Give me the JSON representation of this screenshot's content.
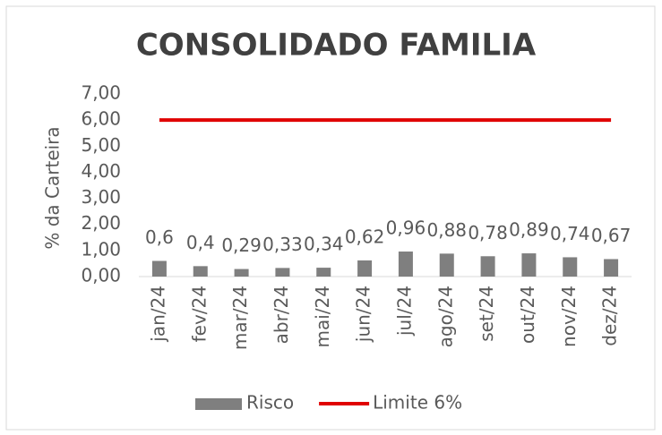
{
  "chart_data": {
    "type": "bar",
    "title": "CONSOLIDADO FAMILIA",
    "y_label": "% da Carteira",
    "categories": [
      "jan/24",
      "fev/24",
      "mar/24",
      "abr/24",
      "mai/24",
      "jun/24",
      "jul/24",
      "ago/24",
      "set/24",
      "out/24",
      "nov/24",
      "dez/24"
    ],
    "series": [
      {
        "name": "Risco",
        "type": "bar",
        "color": "#7f7f7f",
        "values": [
          0.6,
          0.4,
          0.29,
          0.33,
          0.34,
          0.62,
          0.96,
          0.88,
          0.78,
          0.89,
          0.74,
          0.67
        ],
        "value_labels": [
          "0,6",
          "0,4",
          "0,29",
          "0,33",
          "0,34",
          "0,62",
          "0,96",
          "0,88",
          "0,78",
          "0,89",
          "0,74",
          "0,67"
        ]
      },
      {
        "name": "Limite 6%",
        "type": "line",
        "color": "#e00000",
        "values": [
          6,
          6,
          6,
          6,
          6,
          6,
          6,
          6,
          6,
          6,
          6,
          6
        ]
      }
    ],
    "ylim": [
      0,
      7
    ],
    "yticks": [
      {
        "value": 0,
        "label": "0,00"
      },
      {
        "value": 1,
        "label": "1,00"
      },
      {
        "value": 2,
        "label": "2,00"
      },
      {
        "value": 3,
        "label": "3,00"
      },
      {
        "value": 4,
        "label": "4,00"
      },
      {
        "value": 5,
        "label": "5,00"
      },
      {
        "value": 6,
        "label": "6,00"
      },
      {
        "value": 7,
        "label": "7,00"
      }
    ],
    "legend": "bottom"
  }
}
